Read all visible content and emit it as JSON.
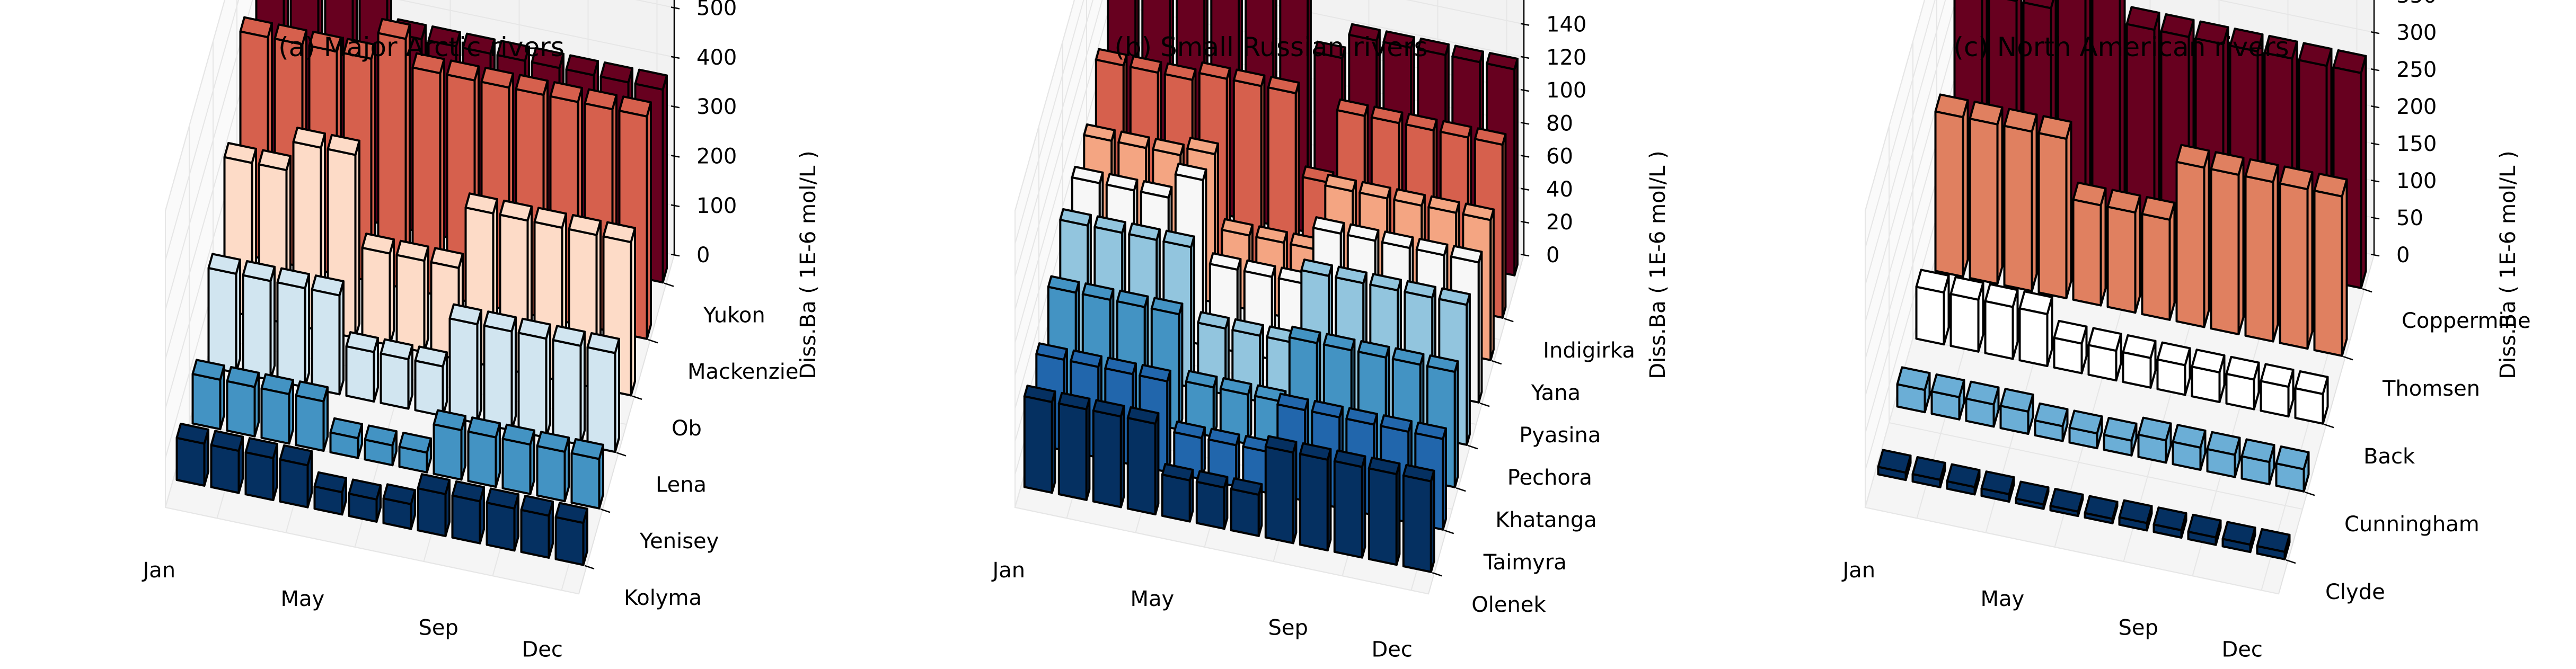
{
  "chart_data": [
    {
      "type": "bar3d",
      "title": "(a) Major Arctic rivers",
      "zlabel": "Diss.Ba ( 1E-6 mol/L )",
      "x_tick_labels": [
        "Jan",
        "May",
        "Sep",
        "Dec"
      ],
      "x_tick_months": [
        1,
        5,
        9,
        12
      ],
      "zlim": [
        0,
        600
      ],
      "zticks": [
        0,
        100,
        200,
        300,
        400,
        500,
        600
      ],
      "grid": true,
      "series": [
        {
          "name": "Kolyma",
          "color": "#053061",
          "values": [
            85,
            85,
            85,
            85,
            45,
            45,
            50,
            85,
            85,
            85,
            85,
            85
          ]
        },
        {
          "name": "Yenisey",
          "color": "#4393c3",
          "values": [
            100,
            100,
            100,
            100,
            40,
            40,
            40,
            100,
            100,
            100,
            100,
            100
          ]
        },
        {
          "name": "Lena",
          "color": "#d1e5f0",
          "values": [
            200,
            200,
            200,
            200,
            100,
            100,
            100,
            200,
            200,
            200,
            200,
            200
          ]
        },
        {
          "name": "Ob",
          "color": "#fddbc7",
          "values": [
            310,
            310,
            370,
            370,
            185,
            185,
            185,
            310,
            310,
            310,
            310,
            310
          ]
        },
        {
          "name": "Mackenzie",
          "color": "#d6604d",
          "values": [
            450,
            450,
            450,
            450,
            505,
            450,
            450,
            450,
            450,
            450,
            450,
            450
          ]
        },
        {
          "name": "Yukon",
          "color": "#67001f",
          "values": [
            600,
            600,
            600,
            600,
            390,
            390,
            390,
            390,
            390,
            390,
            390,
            390
          ]
        }
      ]
    },
    {
      "type": "bar3d",
      "title": "(b) Small Russian rivers",
      "zlabel": "Diss.Ba ( 1E-6 mol/L )",
      "x_tick_labels": [
        "Jan",
        "May",
        "Sep",
        "Dec"
      ],
      "x_tick_months": [
        1,
        5,
        9,
        12
      ],
      "zlim": [
        0,
        180
      ],
      "zticks": [
        0,
        20,
        40,
        60,
        80,
        100,
        120,
        140,
        160,
        180
      ],
      "grid": true,
      "series": [
        {
          "name": "Olenek",
          "color": "#053061",
          "values": [
            55,
            55,
            55,
            55,
            25,
            25,
            25,
            55,
            55,
            55,
            55,
            55
          ]
        },
        {
          "name": "Taimyra",
          "color": "#2166ac",
          "values": [
            55,
            55,
            55,
            55,
            25,
            25,
            25,
            55,
            55,
            55,
            55,
            55
          ]
        },
        {
          "name": "Khatanga",
          "color": "#4393c3",
          "values": [
            70,
            70,
            70,
            70,
            30,
            30,
            30,
            70,
            70,
            70,
            70,
            70
          ]
        },
        {
          "name": "Pechora",
          "color": "#92c5de",
          "values": [
            85,
            85,
            85,
            85,
            40,
            40,
            40,
            85,
            85,
            85,
            85,
            85
          ]
        },
        {
          "name": "Pyasina",
          "color": "#f7f7f7",
          "values": [
            85,
            85,
            85,
            100,
            50,
            50,
            50,
            85,
            85,
            85,
            85,
            85
          ]
        },
        {
          "name": "Yana",
          "color": "#f4a582",
          "values": [
            85,
            85,
            85,
            90,
            45,
            45,
            45,
            85,
            85,
            85,
            85,
            85
          ]
        },
        {
          "name": "Indigirka",
          "color": "#d6604d",
          "values": [
            105,
            105,
            105,
            110,
            110,
            110,
            60,
            105,
            105,
            105,
            105,
            105
          ]
        },
        {
          "name": "",
          "color": "#67001f",
          "values": [
            125,
            125,
            135,
            155,
            180,
            165,
            110,
            125,
            125,
            125,
            125,
            125
          ]
        }
      ]
    },
    {
      "type": "bar3d",
      "title": "(c) North American rivers",
      "zlabel": "Diss.Ba ( 1E-6 mol/L )",
      "x_tick_labels": [
        "Jan",
        "May",
        "Sep",
        "Dec"
      ],
      "x_tick_months": [
        1,
        5,
        9,
        12
      ],
      "zlim": [
        0,
        400
      ],
      "zticks": [
        0,
        50,
        100,
        150,
        200,
        250,
        300,
        350,
        400
      ],
      "grid": true,
      "series": [
        {
          "name": "Clyde",
          "color": "#053061",
          "values": [
            10,
            10,
            10,
            10,
            6,
            6,
            6,
            10,
            10,
            10,
            10,
            10
          ]
        },
        {
          "name": "Cunningham",
          "color": "#6baed6",
          "values": [
            30,
            30,
            30,
            30,
            20,
            20,
            20,
            30,
            30,
            30,
            30,
            30
          ]
        },
        {
          "name": "Back",
          "color": "#ffffff",
          "values": [
            70,
            70,
            70,
            70,
            40,
            40,
            40,
            40,
            40,
            40,
            40,
            40
          ]
        },
        {
          "name": "Thomsen",
          "color": "#e08060",
          "values": [
            215,
            215,
            215,
            215,
            135,
            135,
            135,
            215,
            215,
            215,
            215,
            215
          ]
        },
        {
          "name": "Coppermine",
          "color": "#67001f",
          "values": [
            290,
            290,
            290,
            335,
            400,
            290,
            290,
            290,
            290,
            290,
            290,
            290
          ]
        }
      ]
    }
  ]
}
